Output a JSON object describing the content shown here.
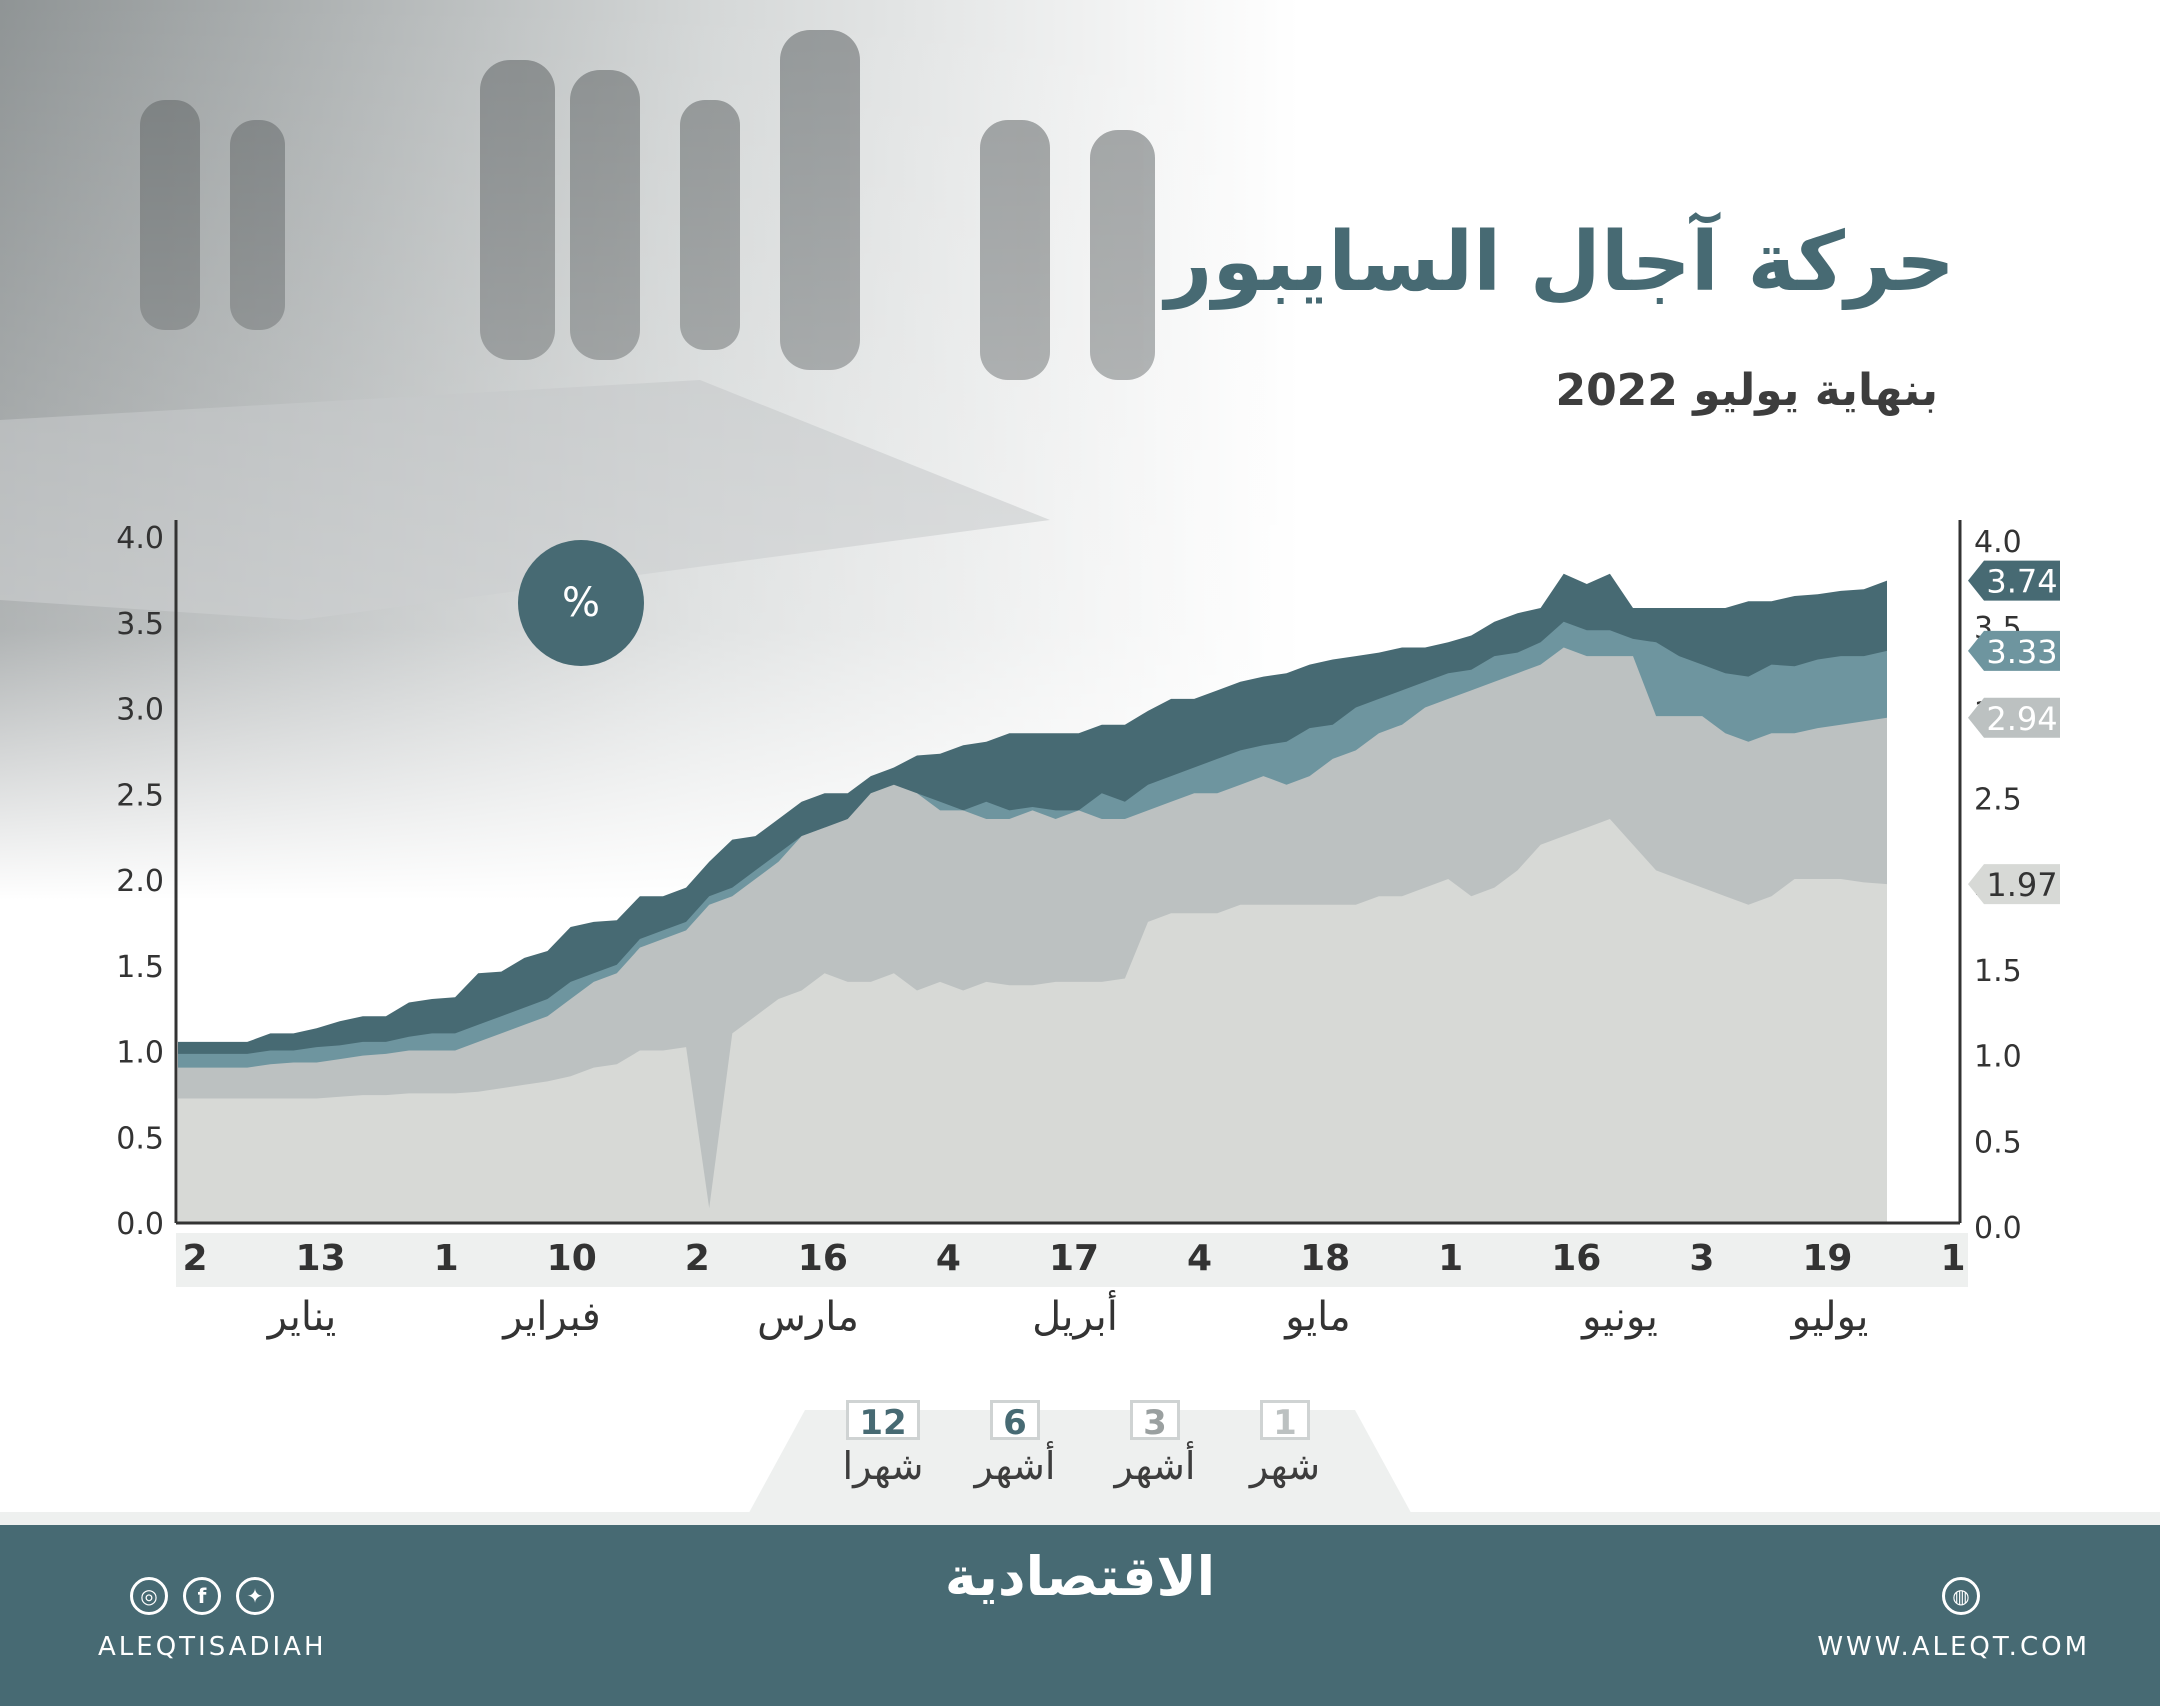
{
  "header": {
    "title": "حركة آجال السايبور",
    "subtitle": "بنهاية يوليو 2022",
    "unit": "%"
  },
  "colors": {
    "m12": "#476a73",
    "m6": "#6e959f",
    "m3": "#bcc1c1",
    "m1": "#d7d9d6"
  },
  "legend": [
    {
      "value": "1",
      "label": "شهر",
      "color": "#bcc1c1"
    },
    {
      "value": "3",
      "label": "أشهر",
      "color": "#9aa0a0"
    },
    {
      "value": "6",
      "label": "أشهر",
      "color": "#476a73"
    },
    {
      "value": "12",
      "label": "شهرا",
      "color": "#476a73"
    }
  ],
  "footer": {
    "brand": "الاقتصادية",
    "handle": "ALEQTISADIAH",
    "site": "WWW.ALEQT.COM"
  },
  "chart_data": {
    "type": "area",
    "ylim": [
      0,
      4.0
    ],
    "y_ticks": [
      "0.0",
      "0.5",
      "1.0",
      "1.5",
      "2.0",
      "2.5",
      "3.0",
      "3.5",
      "4.0"
    ],
    "x_tick_labels": [
      "2",
      "13",
      "1",
      "10",
      "2",
      "16",
      "4",
      "17",
      "4",
      "18",
      "1",
      "16",
      "3",
      "19",
      "1"
    ],
    "month_labels": [
      "يناير",
      "فبراير",
      "مارس",
      "أبريل",
      "مايو",
      "يونيو",
      "يوليو"
    ],
    "end_labels": [
      "3.74",
      "3.33",
      "2.94",
      "1.97"
    ],
    "series": [
      {
        "name": "12 شهرا",
        "values": [
          1.05,
          1.05,
          1.05,
          1.05,
          1.1,
          1.1,
          1.13,
          1.17,
          1.2,
          1.2,
          1.28,
          1.3,
          1.31,
          1.45,
          1.46,
          1.54,
          1.58,
          1.72,
          1.75,
          1.76,
          1.9,
          1.9,
          1.95,
          2.1,
          2.23,
          2.25,
          2.35,
          2.45,
          2.5,
          2.5,
          2.6,
          2.65,
          2.72,
          2.73,
          2.78,
          2.8,
          2.85,
          2.85,
          2.85,
          2.85,
          2.9,
          2.9,
          2.98,
          3.05,
          3.05,
          3.1,
          3.15,
          3.18,
          3.2,
          3.25,
          3.28,
          3.3,
          3.32,
          3.35,
          3.35,
          3.38,
          3.42,
          3.5,
          3.55,
          3.58,
          3.78,
          3.72,
          3.78,
          3.58,
          3.58,
          3.58,
          3.58,
          3.58,
          3.62,
          3.62,
          3.65,
          3.66,
          3.68,
          3.69,
          3.74
        ]
      },
      {
        "name": "6 أشهر",
        "values": [
          0.98,
          0.98,
          0.98,
          0.98,
          1.0,
          1.0,
          1.02,
          1.03,
          1.05,
          1.05,
          1.08,
          1.1,
          1.1,
          1.15,
          1.2,
          1.25,
          1.3,
          1.4,
          1.45,
          1.5,
          1.65,
          1.7,
          1.75,
          1.9,
          1.95,
          2.05,
          2.15,
          2.25,
          2.3,
          2.25,
          2.45,
          2.5,
          2.5,
          2.45,
          2.4,
          2.45,
          2.4,
          2.42,
          2.4,
          2.4,
          2.5,
          2.45,
          2.55,
          2.6,
          2.65,
          2.7,
          2.75,
          2.78,
          2.8,
          2.88,
          2.9,
          3.0,
          3.05,
          3.1,
          3.15,
          3.2,
          3.22,
          3.3,
          3.32,
          3.38,
          3.5,
          3.45,
          3.45,
          3.4,
          3.38,
          3.3,
          3.25,
          3.2,
          3.18,
          3.25,
          3.24,
          3.28,
          3.3,
          3.3,
          3.33
        ]
      },
      {
        "name": "3 أشهر",
        "values": [
          0.9,
          0.9,
          0.9,
          0.9,
          0.92,
          0.93,
          0.93,
          0.95,
          0.97,
          0.98,
          1.0,
          1.0,
          1.0,
          1.05,
          1.1,
          1.15,
          1.2,
          1.3,
          1.4,
          1.45,
          1.6,
          1.65,
          1.7,
          1.85,
          1.9,
          2.0,
          2.1,
          2.25,
          2.3,
          2.35,
          2.5,
          2.55,
          2.5,
          2.4,
          2.4,
          2.35,
          2.35,
          2.4,
          2.35,
          2.4,
          2.35,
          2.35,
          2.4,
          2.45,
          2.5,
          2.5,
          2.55,
          2.6,
          2.55,
          2.6,
          2.7,
          2.75,
          2.85,
          2.9,
          3.0,
          3.05,
          3.1,
          3.15,
          3.2,
          3.25,
          3.35,
          3.3,
          3.3,
          3.3,
          2.95,
          2.95,
          2.95,
          2.85,
          2.8,
          2.85,
          2.85,
          2.88,
          2.9,
          2.92,
          2.94
        ]
      },
      {
        "name": "1 شهر",
        "values": [
          0.72,
          0.72,
          0.72,
          0.72,
          0.72,
          0.72,
          0.72,
          0.73,
          0.74,
          0.74,
          0.75,
          0.75,
          0.75,
          0.76,
          0.78,
          0.8,
          0.82,
          0.85,
          0.9,
          0.92,
          1.0,
          1.0,
          1.02,
          0.08,
          1.1,
          1.2,
          1.3,
          1.35,
          1.45,
          1.4,
          1.4,
          1.45,
          1.35,
          1.4,
          1.35,
          1.4,
          1.38,
          1.38,
          1.4,
          1.4,
          1.4,
          1.42,
          1.75,
          1.8,
          1.8,
          1.8,
          1.85,
          1.85,
          1.85,
          1.85,
          1.85,
          1.85,
          1.9,
          1.9,
          1.95,
          2.0,
          1.9,
          1.95,
          2.05,
          2.2,
          2.25,
          2.3,
          2.35,
          2.2,
          2.05,
          2.0,
          1.95,
          1.9,
          1.85,
          1.9,
          2.0,
          2.0,
          2.0,
          1.98,
          1.97
        ]
      }
    ]
  }
}
